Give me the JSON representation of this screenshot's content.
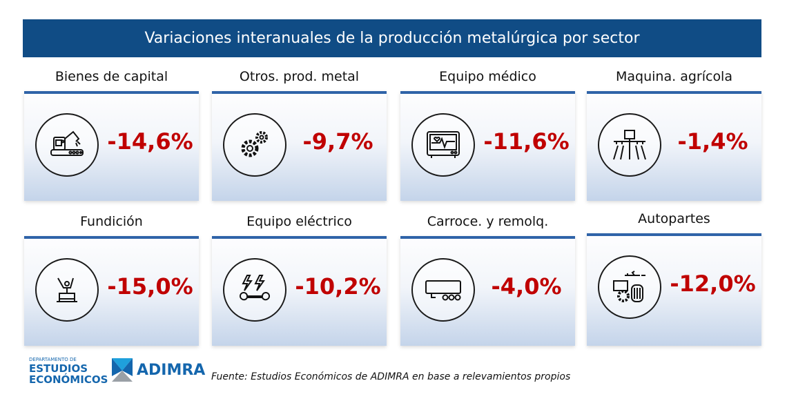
{
  "header": {
    "title": "Variaciones interanuales de la producción metalúrgica por sector"
  },
  "sectors": [
    {
      "name": "Bienes de capital",
      "value": "-14,6%",
      "icon": "robot-arm-icon"
    },
    {
      "name": "Otros. prod. metal",
      "value": "-9,7%",
      "icon": "gears-icon"
    },
    {
      "name": "Equipo médico",
      "value": "-11,6%",
      "icon": "heart-monitor-icon"
    },
    {
      "name": "Maquina. agrícola",
      "value": "-1,4%",
      "icon": "seeder-icon"
    },
    {
      "name": "Fundición",
      "value": "-15,0%",
      "icon": "foundry-icon"
    },
    {
      "name": "Equipo eléctrico",
      "value": "-10,2%",
      "icon": "lightning-wrench-icon"
    },
    {
      "name": "Carroce. y remolq.",
      "value": "-4,0%",
      "icon": "trailer-icon"
    },
    {
      "name": "Autopartes",
      "value": "-12,0%",
      "icon": "autoparts-icon"
    }
  ],
  "colors": {
    "header": "#104c85",
    "value": "#c00000",
    "accent": "#2f63a8"
  },
  "footer": {
    "dept_small": "DEPARTAMENTO DE",
    "dept_line1": "ESTUDIOS",
    "dept_line2": "ECONÓMICOS",
    "org": "ADIMRA",
    "source": "Fuente: Estudios Económicos de ADIMRA en base a relevamientos propios"
  }
}
